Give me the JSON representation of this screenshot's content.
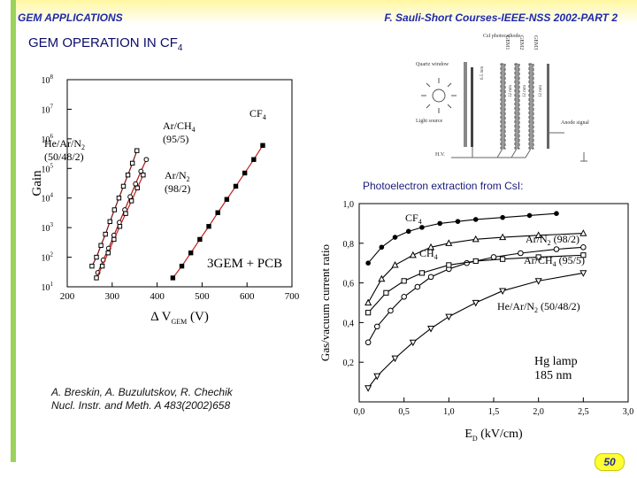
{
  "header": {
    "left": "GEM APPLICATIONS",
    "right": "F. Sauli-Short Courses-IEEE-NSS 2002-PART 2"
  },
  "slide": {
    "title_main": "GEM OPERATION IN CF",
    "title_sub": "4",
    "caption": "Photoelectron extraction from CsI:",
    "authors_line1": "A. Breskin, A. Buzulutskov, R. Chechik",
    "authors_line2": "Nucl. Instr. and Meth. A 483(2002)658",
    "page_number": "50"
  },
  "diagram": {
    "labels": [
      "CsI photocathode",
      "Quartz window",
      "Light source",
      "GEM1",
      "GEM2",
      "GEM3",
      "6.5 mm",
      "12 mm",
      "12 mm",
      "12 mm",
      "Anode signal",
      "H.V."
    ]
  },
  "chart_data": [
    {
      "type": "line",
      "ylabel": "Gain",
      "xlabel": "Δ V",
      "xlabel_sub": "GEM",
      "xlabel_unit": " (V)",
      "yscale": "log",
      "xlim": [
        200,
        700
      ],
      "ylim": [
        1,
        10000000
      ],
      "xticks": [
        200,
        300,
        400,
        500,
        600,
        700
      ],
      "yticks": [
        1,
        10,
        100,
        1000,
        10000,
        100000,
        1000000,
        10000000
      ],
      "ytick_labels": [
        "10",
        "10",
        "10",
        "10",
        "10",
        "10",
        "10",
        "10"
      ],
      "ytick_exps": [
        "1",
        "2",
        "3",
        "4",
        "5",
        "6",
        "7",
        "8"
      ],
      "annotation": "3GEM + PCB",
      "series": [
        {
          "name": "He/Ar/N2 (50/48/2)",
          "label_lines": [
            "He/Ar/N",
            "(50/48/2)"
          ],
          "sub": "2",
          "x": [
            255,
            265,
            275,
            285,
            295,
            305,
            315,
            325,
            335,
            345,
            355
          ],
          "y": [
            5,
            10,
            25,
            60,
            160,
            400,
            1000,
            2500,
            6000,
            15000,
            40000
          ]
        },
        {
          "name": "Ar/CH4 (95/5)",
          "label_lines": [
            "Ar/CH",
            "(95/5)"
          ],
          "sub": "4",
          "x": [
            268,
            280,
            292,
            304,
            316,
            328,
            340,
            352,
            364,
            376
          ],
          "y": [
            3,
            8,
            20,
            55,
            150,
            400,
            1100,
            3000,
            8000,
            20000
          ]
        },
        {
          "name": "Ar/N2 (98/2)",
          "label_lines": [
            "Ar/N",
            "(98/2)"
          ],
          "sub": "2",
          "x": [
            265,
            278,
            291,
            304,
            317,
            330,
            343,
            356,
            369
          ],
          "y": [
            2,
            5,
            14,
            40,
            110,
            300,
            800,
            2200,
            6000
          ]
        },
        {
          "name": "CF4",
          "label_lines": [
            "CF"
          ],
          "sub": "4",
          "x": [
            435,
            455,
            475,
            495,
            515,
            535,
            555,
            575,
            595,
            615,
            635
          ],
          "y": [
            2,
            5,
            14,
            40,
            110,
            320,
            900,
            2500,
            7000,
            20000,
            60000
          ]
        }
      ]
    },
    {
      "type": "line",
      "ylabel": "Gas/vacuum current ratio",
      "xlabel": "E",
      "xlabel_sub": "D",
      "xlabel_unit": " (kV/cm)",
      "xlim": [
        0,
        3.0
      ],
      "ylim": [
        0,
        1.0
      ],
      "xticks": [
        0,
        0.5,
        1.0,
        1.5,
        2.0,
        2.5,
        3.0
      ],
      "xtick_labels": [
        "0,0",
        "0,5",
        "1,0",
        "1,5",
        "2,0",
        "2,5",
        "3,0"
      ],
      "yticks": [
        0.2,
        0.4,
        0.6,
        0.8,
        1.0
      ],
      "ytick_labels": [
        "0,2",
        "0,4",
        "0,6",
        "0,8",
        "1,0"
      ],
      "annotation_lines": [
        "Hg lamp",
        "185 nm"
      ],
      "series": [
        {
          "name": "CF4",
          "label": "CF",
          "sub": "4",
          "x": [
            0.1,
            0.25,
            0.4,
            0.55,
            0.7,
            0.9,
            1.1,
            1.3,
            1.6,
            1.9,
            2.2
          ],
          "y": [
            0.7,
            0.78,
            0.83,
            0.86,
            0.88,
            0.9,
            0.91,
            0.92,
            0.93,
            0.94,
            0.95
          ]
        },
        {
          "name": "Ar/N2 (98/2)",
          "label": "Ar/N",
          "sub": "2",
          "label_tail": " (98/2)",
          "x": [
            0.1,
            0.25,
            0.4,
            0.6,
            0.8,
            1.0,
            1.3,
            1.6,
            2.0,
            2.5
          ],
          "y": [
            0.5,
            0.62,
            0.69,
            0.74,
            0.78,
            0.8,
            0.82,
            0.83,
            0.84,
            0.85
          ]
        },
        {
          "name": "CH4",
          "label": "CH",
          "sub": "4",
          "x": [
            0.1,
            0.2,
            0.35,
            0.5,
            0.65,
            0.8,
            1.0,
            1.2,
            1.5,
            1.8,
            2.2,
            2.5
          ],
          "y": [
            0.3,
            0.38,
            0.46,
            0.53,
            0.58,
            0.63,
            0.67,
            0.7,
            0.73,
            0.75,
            0.77,
            0.78
          ]
        },
        {
          "name": "Ar/CH4 (95/5)",
          "label": "Ar/CH",
          "sub": "4",
          "label_tail": " (95/5)",
          "x": [
            0.1,
            0.3,
            0.5,
            0.7,
            1.0,
            1.3,
            1.6,
            2.0,
            2.5
          ],
          "y": [
            0.45,
            0.55,
            0.61,
            0.65,
            0.69,
            0.71,
            0.72,
            0.73,
            0.74
          ]
        },
        {
          "name": "He/Ar/N2 (50/48/2)",
          "label": "He/Ar/N",
          "sub": "2",
          "label_tail": " (50/48/2)",
          "x": [
            0.1,
            0.2,
            0.4,
            0.6,
            0.8,
            1.0,
            1.3,
            1.6,
            2.0,
            2.5
          ],
          "y": [
            0.07,
            0.13,
            0.22,
            0.3,
            0.37,
            0.43,
            0.5,
            0.56,
            0.61,
            0.65
          ]
        }
      ]
    }
  ]
}
